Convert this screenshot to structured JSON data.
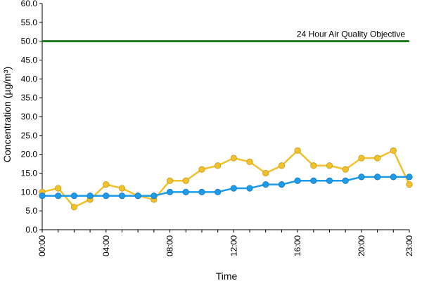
{
  "chart_data": {
    "type": "line",
    "title": "",
    "xlabel": "Time",
    "ylabel": "Concentration (µg/m³)",
    "ylim": [
      0,
      60
    ],
    "y_ticks": [
      "0.0",
      "5.0",
      "10.0",
      "15.0",
      "20.0",
      "25.0",
      "30.0",
      "35.0",
      "40.0",
      "45.0",
      "50.0",
      "55.0",
      "60.0"
    ],
    "x_ticks": [
      {
        "hour": 0,
        "label": "00:00"
      },
      {
        "hour": 4,
        "label": "04:00"
      },
      {
        "hour": 8,
        "label": "08:00"
      },
      {
        "hour": 12,
        "label": "12:00"
      },
      {
        "hour": 16,
        "label": "16:00"
      },
      {
        "hour": 20,
        "label": "20:00"
      },
      {
        "hour": 23,
        "label": "23:00"
      }
    ],
    "grid": false,
    "x": [
      0,
      1,
      2,
      3,
      4,
      5,
      6,
      7,
      8,
      9,
      10,
      11,
      12,
      13,
      14,
      15,
      16,
      17,
      18,
      19,
      20,
      21,
      22,
      23
    ],
    "series": [
      {
        "color": "#f2c12e",
        "values": [
          10,
          11,
          6,
          8,
          12,
          11,
          9,
          8,
          13,
          13,
          16,
          17,
          19,
          18,
          15,
          17,
          21,
          17,
          17,
          16,
          19,
          19,
          21,
          12
        ]
      },
      {
        "color": "#1e9be8",
        "values": [
          9,
          9,
          9,
          9,
          9,
          9,
          9,
          9,
          10,
          10,
          10,
          10,
          11,
          11,
          12,
          12,
          13,
          13,
          13,
          13,
          14,
          14,
          14,
          14
        ]
      }
    ],
    "reference_line": {
      "value": 50,
      "label": "24 Hour Air Quality Objective",
      "color": "#1d7a1d"
    }
  }
}
